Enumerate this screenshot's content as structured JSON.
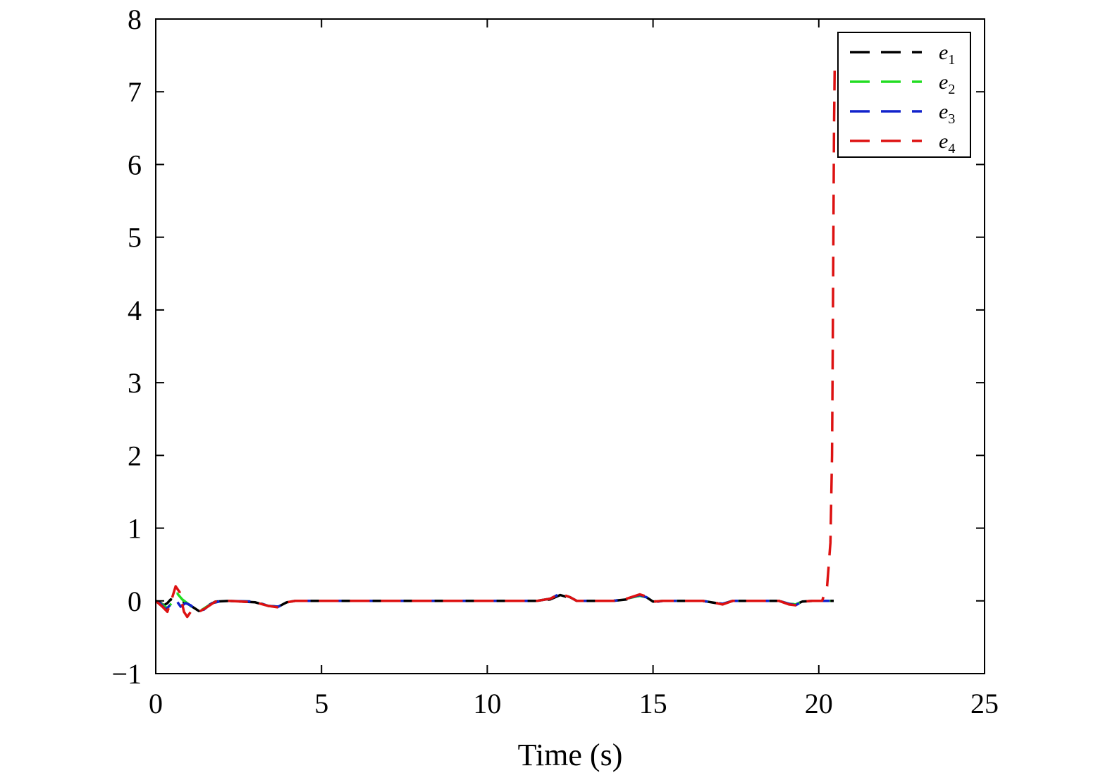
{
  "chart_data": {
    "type": "line",
    "title": "",
    "xlabel": "Time (s)",
    "ylabel": "",
    "xlim": [
      0,
      25
    ],
    "ylim": [
      -1,
      8
    ],
    "xticks": [
      0,
      5,
      10,
      15,
      20,
      25
    ],
    "yticks": [
      -1,
      0,
      1,
      2,
      3,
      4,
      5,
      6,
      7,
      8
    ],
    "xtick_labels": [
      "0",
      "5",
      "10",
      "15",
      "20",
      "25"
    ],
    "ytick_labels": [
      "−1",
      "0",
      "1",
      "2",
      "3",
      "4",
      "5",
      "6",
      "7",
      "8"
    ],
    "grid": false,
    "legend_position": "top-right",
    "line_style": "dashed",
    "series": [
      {
        "name": "e1",
        "label_base": "e",
        "label_sub": "1",
        "color": "#000000",
        "points": [
          [
            0,
            0
          ],
          [
            0.15,
            -0.03
          ],
          [
            0.25,
            -0.06
          ],
          [
            0.35,
            -0.03
          ],
          [
            0.45,
            0.02
          ],
          [
            0.55,
            0
          ],
          [
            0.7,
            -0.03
          ],
          [
            0.9,
            -0.02
          ],
          [
            1.1,
            -0.08
          ],
          [
            1.3,
            -0.14
          ],
          [
            1.5,
            -0.08
          ],
          [
            1.8,
            -0.01
          ],
          [
            2.2,
            0
          ],
          [
            3.0,
            -0.02
          ],
          [
            3.4,
            -0.07
          ],
          [
            3.7,
            -0.08
          ],
          [
            3.95,
            -0.02
          ],
          [
            4.2,
            0
          ],
          [
            11.5,
            0
          ],
          [
            11.9,
            0.02
          ],
          [
            12.2,
            0.08
          ],
          [
            12.5,
            0.04
          ],
          [
            12.7,
            0
          ],
          [
            13.8,
            0
          ],
          [
            14.2,
            0.02
          ],
          [
            14.6,
            0.07
          ],
          [
            14.8,
            0.05
          ],
          [
            15.0,
            -0.01
          ],
          [
            15.3,
            0
          ],
          [
            16.5,
            0
          ],
          [
            16.9,
            -0.03
          ],
          [
            17.1,
            -0.04
          ],
          [
            17.4,
            0
          ],
          [
            18.8,
            0
          ],
          [
            19.1,
            -0.04
          ],
          [
            19.3,
            -0.05
          ],
          [
            19.5,
            -0.01
          ],
          [
            19.8,
            0
          ],
          [
            20.45,
            0
          ]
        ]
      },
      {
        "name": "e2",
        "label_base": "e",
        "label_sub": "2",
        "color": "#22dd22",
        "points": [
          [
            0,
            0
          ],
          [
            0.2,
            -0.05
          ],
          [
            0.35,
            -0.1
          ],
          [
            0.5,
            -0.02
          ],
          [
            0.65,
            0.1
          ],
          [
            0.8,
            0.02
          ],
          [
            1.0,
            -0.05
          ],
          [
            1.2,
            -0.13
          ],
          [
            1.4,
            -0.12
          ],
          [
            1.7,
            -0.03
          ],
          [
            2.0,
            0
          ],
          [
            3.0,
            -0.01
          ],
          [
            3.4,
            -0.07
          ],
          [
            3.7,
            -0.08
          ],
          [
            3.95,
            -0.02
          ],
          [
            4.2,
            0
          ],
          [
            11.5,
            0
          ],
          [
            11.9,
            0.03
          ],
          [
            12.2,
            0.1
          ],
          [
            12.5,
            0.05
          ],
          [
            12.7,
            0
          ],
          [
            13.8,
            0
          ],
          [
            14.2,
            0.03
          ],
          [
            14.6,
            0.07
          ],
          [
            14.8,
            0.05
          ],
          [
            15.0,
            -0.01
          ],
          [
            15.3,
            0
          ],
          [
            16.5,
            0
          ],
          [
            16.9,
            -0.03
          ],
          [
            17.1,
            -0.04
          ],
          [
            17.4,
            0
          ],
          [
            18.8,
            0
          ],
          [
            19.1,
            -0.04
          ],
          [
            19.3,
            -0.05
          ],
          [
            19.5,
            -0.01
          ],
          [
            19.8,
            0
          ],
          [
            20.45,
            0
          ]
        ]
      },
      {
        "name": "e3",
        "label_base": "e",
        "label_sub": "3",
        "color": "#1122cc",
        "points": [
          [
            0,
            0
          ],
          [
            0.15,
            -0.04
          ],
          [
            0.3,
            -0.12
          ],
          [
            0.45,
            -0.05
          ],
          [
            0.6,
            0.02
          ],
          [
            0.75,
            -0.08
          ],
          [
            0.9,
            -0.03
          ],
          [
            1.05,
            -0.06
          ],
          [
            1.25,
            -0.14
          ],
          [
            1.45,
            -0.12
          ],
          [
            1.7,
            -0.03
          ],
          [
            2.0,
            0
          ],
          [
            3.0,
            -0.01
          ],
          [
            3.4,
            -0.07
          ],
          [
            3.7,
            -0.08
          ],
          [
            3.95,
            -0.02
          ],
          [
            4.2,
            0
          ],
          [
            11.5,
            0
          ],
          [
            11.9,
            0.03
          ],
          [
            12.2,
            0.1
          ],
          [
            12.5,
            0.05
          ],
          [
            12.7,
            0
          ],
          [
            13.8,
            0
          ],
          [
            14.2,
            0.03
          ],
          [
            14.6,
            0.08
          ],
          [
            14.8,
            0.05
          ],
          [
            15.0,
            -0.02
          ],
          [
            15.3,
            0
          ],
          [
            16.5,
            0
          ],
          [
            16.9,
            -0.03
          ],
          [
            17.1,
            -0.04
          ],
          [
            17.4,
            0
          ],
          [
            18.8,
            0
          ],
          [
            19.1,
            -0.04
          ],
          [
            19.3,
            -0.06
          ],
          [
            19.5,
            -0.01
          ],
          [
            19.8,
            0
          ],
          [
            20.45,
            0
          ]
        ]
      },
      {
        "name": "e4",
        "label_base": "e",
        "label_sub": "4",
        "color": "#dd1111",
        "points": [
          [
            0,
            0
          ],
          [
            0.2,
            -0.08
          ],
          [
            0.35,
            -0.15
          ],
          [
            0.5,
            0.05
          ],
          [
            0.6,
            0.2
          ],
          [
            0.72,
            0.12
          ],
          [
            0.85,
            -0.15
          ],
          [
            0.95,
            -0.22
          ],
          [
            1.1,
            -0.12
          ],
          [
            1.3,
            -0.15
          ],
          [
            1.5,
            -0.1
          ],
          [
            1.8,
            -0.01
          ],
          [
            2.2,
            0
          ],
          [
            3.0,
            -0.02
          ],
          [
            3.4,
            -0.07
          ],
          [
            3.7,
            -0.09
          ],
          [
            3.95,
            -0.02
          ],
          [
            4.2,
            0
          ],
          [
            11.5,
            0
          ],
          [
            11.9,
            0.03
          ],
          [
            12.2,
            0.1
          ],
          [
            12.5,
            0.05
          ],
          [
            12.7,
            0
          ],
          [
            13.8,
            0
          ],
          [
            14.2,
            0.03
          ],
          [
            14.6,
            0.09
          ],
          [
            14.8,
            0.06
          ],
          [
            15.0,
            -0.01
          ],
          [
            15.3,
            0
          ],
          [
            16.5,
            0
          ],
          [
            16.9,
            -0.03
          ],
          [
            17.1,
            -0.05
          ],
          [
            17.4,
            0
          ],
          [
            18.8,
            0
          ],
          [
            19.1,
            -0.05
          ],
          [
            19.3,
            -0.06
          ],
          [
            19.5,
            -0.01
          ],
          [
            19.8,
            0
          ],
          [
            20.1,
            0
          ],
          [
            20.25,
            0.2
          ],
          [
            20.35,
            0.8
          ],
          [
            20.4,
            2.0
          ],
          [
            20.42,
            3.5
          ],
          [
            20.44,
            5.0
          ],
          [
            20.46,
            6.5
          ],
          [
            20.48,
            7.4
          ]
        ]
      }
    ]
  }
}
